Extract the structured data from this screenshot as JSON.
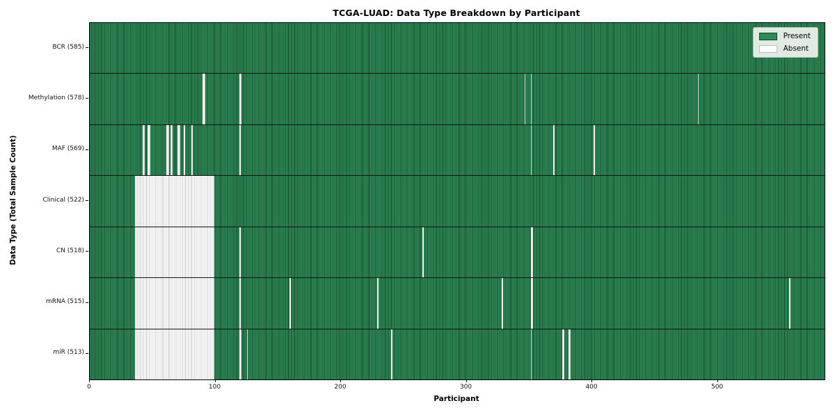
{
  "chart_data": {
    "type": "heatmap",
    "title": "TCGA-LUAD: Data Type Breakdown by Participant",
    "xlabel": "Participant",
    "ylabel": "Data Type (Total Sample Count)",
    "x_ticks": [
      0,
      100,
      200,
      300,
      400,
      500
    ],
    "x_max": 585,
    "grid": false,
    "legend_position": "upper right",
    "legend": [
      {
        "label": "Present",
        "color": "#2e8b57",
        "edge": "#16452b"
      },
      {
        "label": "Absent",
        "color": "#ffffff",
        "edge": "#bfbfbf"
      }
    ],
    "colors": {
      "present_fill": "#2e8b57",
      "present_edge": "#16452b",
      "absent_fill": "#ffffff",
      "absent_edge": "#c4c4c4",
      "row_separator": "#131313"
    },
    "rows": [
      {
        "label": "BCR (585)",
        "total": 585,
        "absent_ranges": []
      },
      {
        "label": "Methylation (578)",
        "total": 578,
        "absent_ranges": [
          [
            90,
            91
          ],
          [
            119,
            120
          ],
          [
            346,
            346
          ],
          [
            351,
            351
          ],
          [
            484,
            484
          ]
        ]
      },
      {
        "label": "MAF (569)",
        "total": 569,
        "absent_ranges": [
          [
            42,
            43
          ],
          [
            46,
            47
          ],
          [
            61,
            62
          ],
          [
            64,
            65
          ],
          [
            70,
            71
          ],
          [
            75,
            75
          ],
          [
            81,
            81
          ],
          [
            119,
            119
          ],
          [
            351,
            351
          ],
          [
            369,
            369
          ],
          [
            401,
            401
          ]
        ]
      },
      {
        "label": "Clinical (522)",
        "total": 522,
        "absent_ranges": [
          [
            36,
            98
          ]
        ]
      },
      {
        "label": "CN (518)",
        "total": 518,
        "absent_ranges": [
          [
            36,
            98
          ],
          [
            119,
            119
          ],
          [
            265,
            265
          ],
          [
            351,
            352
          ]
        ]
      },
      {
        "label": "mRNA (515)",
        "total": 515,
        "absent_ranges": [
          [
            36,
            98
          ],
          [
            119,
            119
          ],
          [
            159,
            159
          ],
          [
            229,
            229
          ],
          [
            328,
            328
          ],
          [
            351,
            352
          ],
          [
            557,
            557
          ]
        ]
      },
      {
        "label": "miR (513)",
        "total": 513,
        "absent_ranges": [
          [
            36,
            98
          ],
          [
            119,
            120
          ],
          [
            125,
            125
          ],
          [
            240,
            240
          ],
          [
            351,
            351
          ],
          [
            376,
            377
          ],
          [
            381,
            382
          ]
        ]
      }
    ]
  }
}
